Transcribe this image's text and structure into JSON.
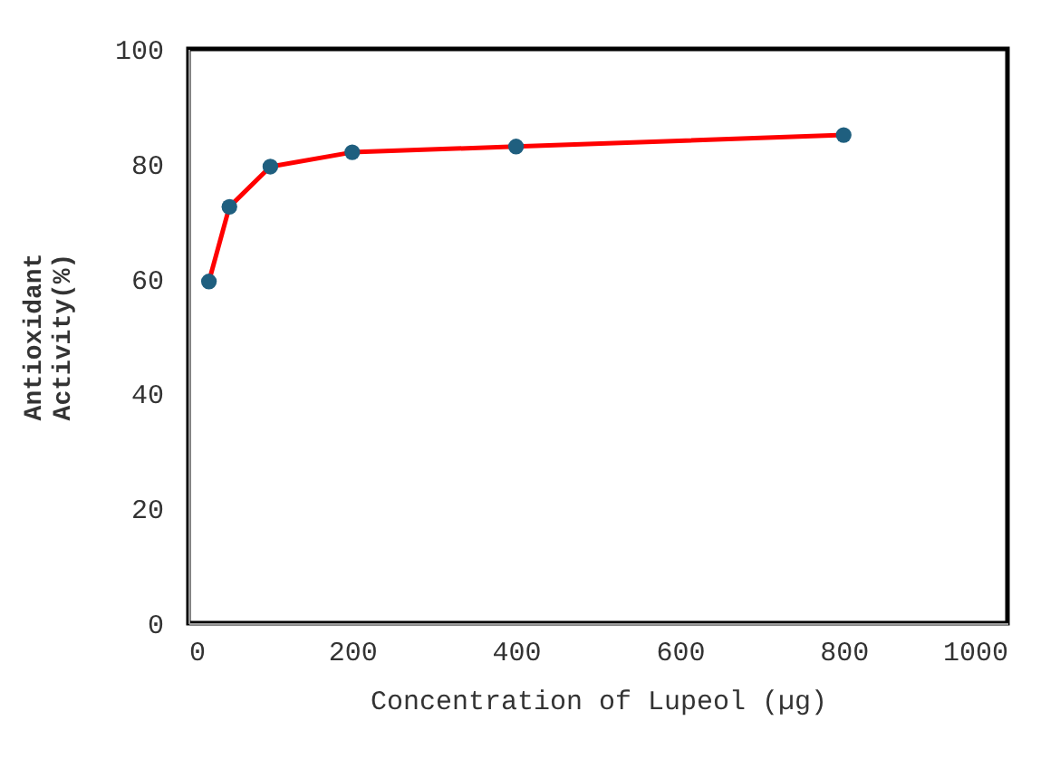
{
  "chart_data": {
    "type": "line",
    "xlabel": "Concentration of Lupeol (µg)",
    "ylabel": "Antioxidant\nActivity(%)",
    "x": [
      25,
      50,
      100,
      200,
      400,
      800
    ],
    "series": [
      {
        "color": "#ff0000",
        "colors": [
          "#1f5f7f",
          "#1f5f7f",
          "#1f5f7f",
          "#1f5f7f",
          "#1f5f7f",
          "#1f5f7f"
        ],
        "values": [
          59.5,
          72.5,
          79.5,
          82,
          83,
          85
        ]
      }
    ],
    "xlim": [
      0,
      1000
    ],
    "xticks": [
      0,
      200,
      400,
      600,
      800,
      1000
    ],
    "ylim": [
      0,
      100
    ],
    "yticks": [
      0,
      20,
      40,
      60,
      80,
      100
    ],
    "grid": false,
    "marker": "circle",
    "line_style": "solid"
  }
}
